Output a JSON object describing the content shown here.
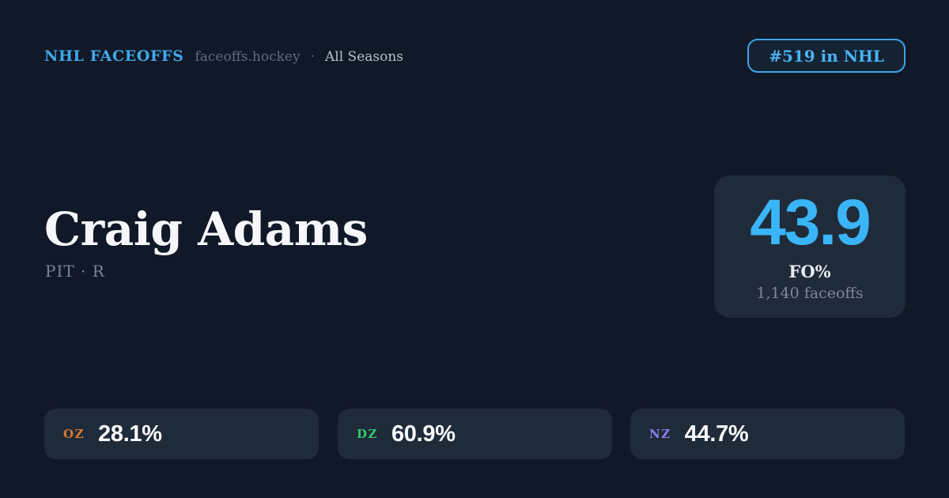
{
  "header": {
    "brand": "NHL FACEOFFS",
    "domain": "faceoffs.hockey",
    "separator": "·",
    "season": "All Seasons",
    "rank_badge": "#519 in NHL"
  },
  "player": {
    "name": "Craig Adams",
    "team_position": "PIT · R"
  },
  "faceoff_card": {
    "value": "43.9",
    "label": "FO%",
    "subtext": "1,140 faceoffs"
  },
  "zones": [
    {
      "label": "OZ",
      "value": "28.1%",
      "color": "#e0772f"
    },
    {
      "label": "DZ",
      "value": "60.9%",
      "color": "#2fc96b"
    },
    {
      "label": "NZ",
      "value": "44.7%",
      "color": "#8e7df2"
    }
  ],
  "colors": {
    "background": "#111827",
    "card_background": "#202b3a",
    "accent_blue": "#3ab5f7",
    "brand_blue": "#41a8e8",
    "badge_border": "#3ea3e8",
    "text_primary": "#f5f7fa",
    "text_muted": "#77849a"
  }
}
